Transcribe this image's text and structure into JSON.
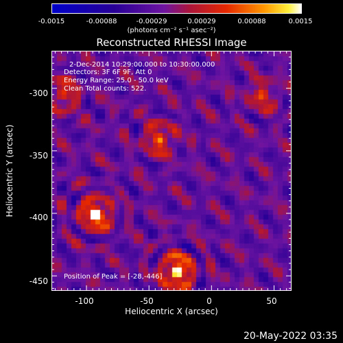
{
  "colorbar": {
    "ticks": [
      "-0.0015",
      "-0.00088",
      "-0.00029",
      "0.00029",
      "0.00088",
      "0.0015"
    ],
    "units_html": "(photons cm⁻² s⁻¹ asec⁻²)",
    "min": -0.0015,
    "max": 0.0015
  },
  "title": "Reconstructed RHESSI Image",
  "annotations": {
    "line1": "2-Dec-2014 10:29:00.000 to 10:30:00.000",
    "line2": "Detectors: 3F 6F 9F, Att 0",
    "line3": "Energy Range: 25.0 - 50.0 keV",
    "line4": "Clean    Total counts: 522.",
    "peak": "Position of Peak = [-28,-446]"
  },
  "axes": {
    "xlabel": "Heliocentric X (arcsec)",
    "ylabel": "Heliocentric Y (arcsec)",
    "xticks": [
      "-100",
      "-50",
      "0",
      "50"
    ],
    "yticks": [
      "-300",
      "-350",
      "-400",
      "-450"
    ],
    "xlim": [
      -128,
      64
    ],
    "ylim": [
      -462,
      -270
    ]
  },
  "sources": [
    {
      "x": -28,
      "y": -446,
      "strength": 1.0
    },
    {
      "x": -93,
      "y": -400,
      "strength": 0.95
    },
    {
      "x": -42,
      "y": -340,
      "strength": 0.6
    },
    {
      "x": -120,
      "y": -305,
      "strength": 0.55
    },
    {
      "x": 40,
      "y": -305,
      "strength": 0.45
    }
  ],
  "datestamp": "20-May-2022 03:35"
}
